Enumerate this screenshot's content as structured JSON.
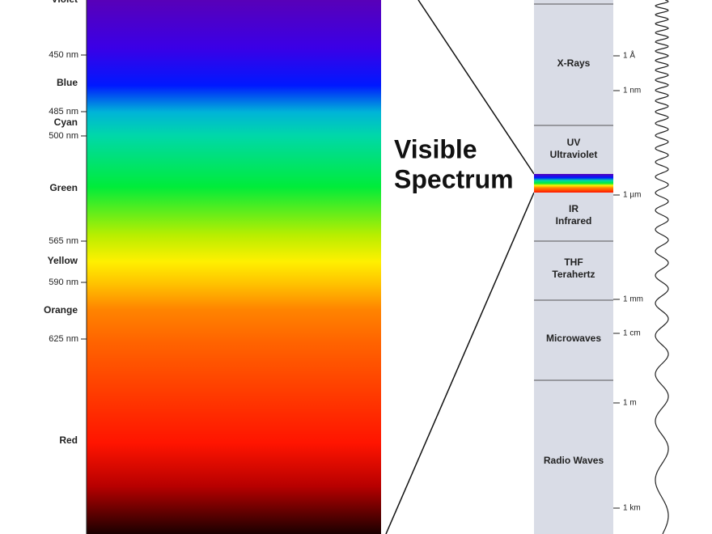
{
  "visible_labels": [
    {
      "text": "Violet",
      "kind": "color"
    },
    {
      "text": "450 nm",
      "kind": "nm"
    },
    {
      "text": "Blue",
      "kind": "color"
    },
    {
      "text": "485 nm",
      "kind": "nm"
    },
    {
      "text": "Cyan",
      "kind": "color"
    },
    {
      "text": "500 nm",
      "kind": "nm"
    },
    {
      "text": "Green",
      "kind": "color"
    },
    {
      "text": "565 nm",
      "kind": "nm"
    },
    {
      "text": "Yellow",
      "kind": "color"
    },
    {
      "text": "590 nm",
      "kind": "nm"
    },
    {
      "text": "Orange",
      "kind": "color"
    },
    {
      "text": "625 nm",
      "kind": "nm"
    },
    {
      "text": "Red",
      "kind": "color"
    }
  ],
  "title": [
    "Visible",
    "Spectrum"
  ],
  "bands": [
    {
      "name": "X-Rays"
    },
    {
      "abbr": "UV",
      "name": "Ultraviolet"
    },
    {
      "abbr": "IR",
      "name": "Infrared"
    },
    {
      "abbr": "THF",
      "name": "Terahertz"
    },
    {
      "name": "Microwaves"
    },
    {
      "name": "Radio Waves"
    }
  ],
  "scale": [
    "1 Å",
    "1 nm",
    "1 µm",
    "1 mm",
    "1 cm",
    "1 m",
    "1 km"
  ]
}
